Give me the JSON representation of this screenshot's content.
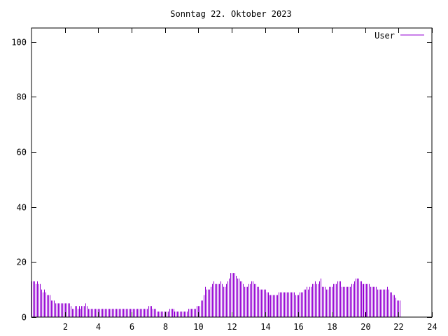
{
  "chart_data": {
    "type": "bar",
    "title": "Sonntag 22. Oktober 2023",
    "xlabel": "",
    "ylabel": "",
    "xlim": [
      0,
      24
    ],
    "ylim": [
      0,
      105
    ],
    "xticks": [
      2,
      4,
      6,
      8,
      10,
      12,
      14,
      16,
      18,
      20,
      22,
      24
    ],
    "yticks": [
      0,
      20,
      40,
      60,
      80,
      100
    ],
    "grid": false,
    "legend_position": "top-right",
    "series": [
      {
        "name": "User",
        "color": "#9400d3",
        "x_start": 0,
        "x_step": 0.0833,
        "values": [
          13,
          13,
          13,
          12,
          13,
          12,
          12,
          10,
          9,
          10,
          9,
          8,
          8,
          8,
          6,
          6,
          6,
          5,
          5,
          5,
          5,
          5,
          5,
          5,
          5,
          5,
          5,
          5,
          4,
          3,
          3,
          4,
          4,
          3,
          4,
          3,
          4,
          4,
          4,
          5,
          4,
          3,
          3,
          3,
          3,
          3,
          3,
          3,
          3,
          3,
          3,
          3,
          3,
          3,
          3,
          3,
          3,
          3,
          3,
          3,
          3,
          3,
          3,
          3,
          3,
          3,
          3,
          3,
          3,
          3,
          3,
          3,
          3,
          3,
          3,
          3,
          3,
          3,
          3,
          3,
          3,
          3,
          3,
          3,
          4,
          4,
          4,
          3,
          3,
          3,
          2,
          2,
          2,
          2,
          2,
          2,
          2,
          2,
          2,
          3,
          3,
          3,
          3,
          2,
          2,
          2,
          2,
          2,
          2,
          2,
          2,
          2,
          2,
          3,
          3,
          3,
          3,
          3,
          3,
          4,
          4,
          4,
          6,
          6,
          8,
          11,
          10,
          10,
          10,
          11,
          12,
          13,
          12,
          12,
          12,
          12,
          13,
          12,
          11,
          11,
          12,
          13,
          14,
          16,
          16,
          16,
          16,
          15,
          14,
          14,
          13,
          13,
          12,
          11,
          11,
          11,
          12,
          12,
          13,
          13,
          12,
          12,
          11,
          11,
          10,
          10,
          10,
          10,
          10,
          9,
          9,
          8,
          8,
          8,
          8,
          8,
          8,
          8,
          9,
          9,
          9,
          9,
          9,
          9,
          9,
          9,
          9,
          9,
          9,
          9,
          8,
          8,
          8,
          9,
          9,
          9,
          10,
          10,
          11,
          10,
          11,
          11,
          12,
          12,
          13,
          12,
          12,
          13,
          14,
          11,
          11,
          11,
          10,
          10,
          11,
          11,
          11,
          12,
          12,
          12,
          13,
          13,
          13,
          11,
          11,
          11,
          11,
          11,
          11,
          11,
          12,
          12,
          13,
          14,
          14,
          14,
          13,
          13,
          12,
          12,
          12,
          12,
          12,
          12,
          11,
          11,
          11,
          11,
          11,
          10,
          10,
          10,
          10,
          10,
          10,
          10,
          11,
          10,
          9,
          9,
          8,
          8,
          7,
          6,
          6,
          6
        ]
      }
    ]
  }
}
